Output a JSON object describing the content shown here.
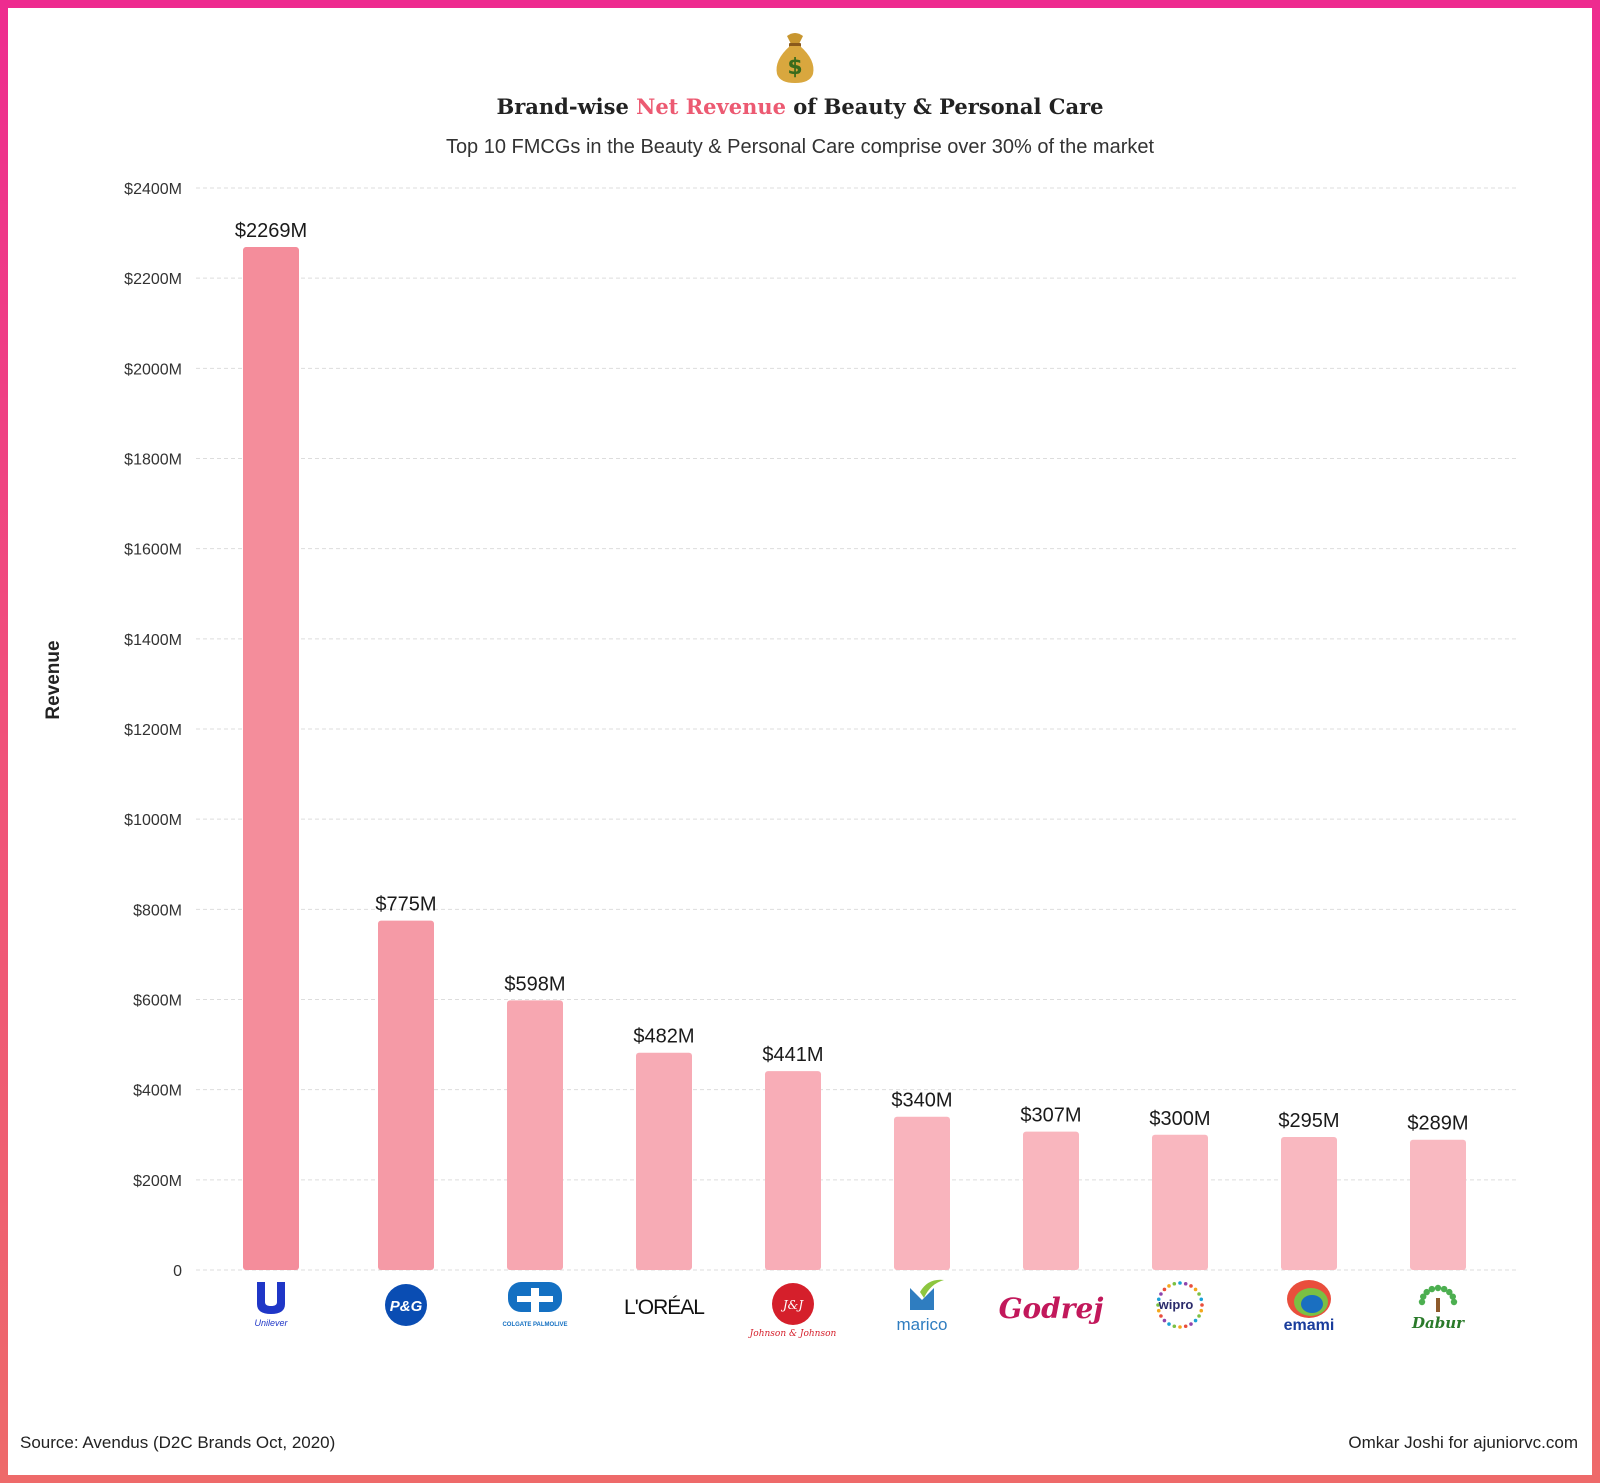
{
  "header": {
    "title_prefix": "Brand-wise ",
    "title_highlight": "Net Revenue",
    "title_suffix": " of Beauty & Personal Care",
    "subtitle": "Top 10 FMCGs in the Beauty & Personal Care comprise over 30% of the market",
    "icon": "money-bag-icon"
  },
  "chart_data": {
    "type": "bar",
    "title": "Brand-wise Net Revenue of Beauty & Personal Care",
    "subtitle": "Top 10 FMCGs in the Beauty & Personal Care comprise over 30% of the market",
    "ylabel": "Revenue",
    "xlabel": "",
    "ylim": [
      0,
      2400
    ],
    "yticks": [
      0,
      200,
      400,
      600,
      800,
      1000,
      1200,
      1400,
      1600,
      1800,
      2000,
      2200,
      2400
    ],
    "ytick_labels": [
      "0",
      "$200M",
      "$400M",
      "$600M",
      "$800M",
      "$1000M",
      "$1200M",
      "$1400M",
      "$1600M",
      "$1800M",
      "$2000M",
      "$2200M",
      "$2400M"
    ],
    "grid": true,
    "categories": [
      "Unilever",
      "P&G",
      "Colgate Palmolive",
      "L'ORÉAL",
      "Johnson & Johnson",
      "marico",
      "Godrej",
      "wipro",
      "emami",
      "Dabur"
    ],
    "values": [
      2269,
      775,
      598,
      482,
      441,
      340,
      307,
      300,
      295,
      289
    ],
    "data_labels": [
      "$2269M",
      "$775M",
      "$598M",
      "$482M",
      "$441M",
      "$340M",
      "$307M",
      "$300M",
      "$295M",
      "$289M"
    ],
    "logos": [
      {
        "icon": "unilever-logo",
        "text": "Unilever",
        "color": "#1f36c7"
      },
      {
        "icon": "pg-logo",
        "text": "P&G",
        "color": "#0a4db3"
      },
      {
        "icon": "colgate-logo",
        "text": "COLGATE PALMOLIVE",
        "color": "#1470c2"
      },
      {
        "icon": "loreal-logo",
        "text": "L'ORÉAL",
        "color": "#111111"
      },
      {
        "icon": "jnj-logo",
        "text": "Johnson & Johnson",
        "color": "#d51f2b"
      },
      {
        "icon": "marico-logo",
        "text": "marico",
        "color": "#2f7dc0"
      },
      {
        "icon": "godrej-logo",
        "text": "Godrej",
        "color": "#c2185b"
      },
      {
        "icon": "wipro-logo",
        "text": "wipro",
        "color": "#2b2b6b"
      },
      {
        "icon": "emami-logo",
        "text": "emami",
        "color": "#1a3d9c"
      },
      {
        "icon": "dabur-logo",
        "text": "Dabur",
        "color": "#2a7a2a"
      }
    ],
    "bar_colors": [
      "#f48d9b",
      "#f59aa6",
      "#f7a7b1",
      "#f7abb5",
      "#f8adb7",
      "#f9b4bd",
      "#f9b6be",
      "#f9b7bf",
      "#f9b8c0",
      "#f9b9c1"
    ],
    "gridline_color": "#dddddd"
  },
  "footer": {
    "source": "Source: Avendus (D2C Brands Oct, 2020)",
    "credit": "Omkar Joshi for ajuniorvc.com"
  }
}
